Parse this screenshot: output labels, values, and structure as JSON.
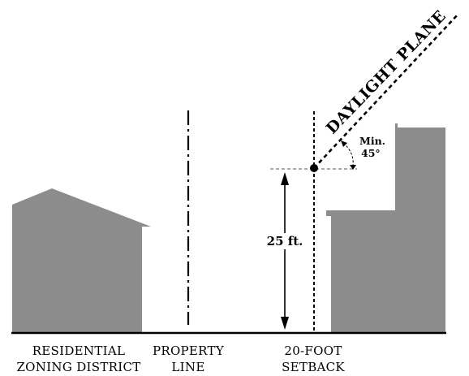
{
  "labels": {
    "daylight_plane": "DAYLIGHT PLANE",
    "angle_line1": "Min.",
    "angle_line2": "45°",
    "height_dim": "25 ft.",
    "residential_line1": "RESIDENTIAL",
    "residential_line2": "ZONING DISTRICT",
    "property_line1": "PROPERTY",
    "property_line2": "LINE",
    "setback_line1": "20-FOOT",
    "setback_line2": "SETBACK"
  },
  "colors": {
    "building": "#8c8c8d",
    "line": "#000000",
    "guide": "#555555"
  }
}
